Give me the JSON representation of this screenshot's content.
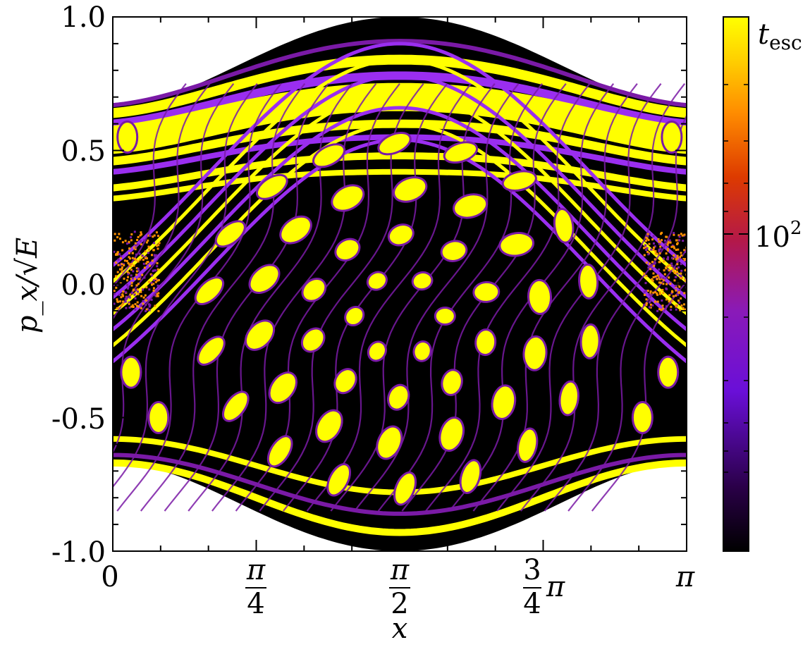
{
  "chart_data": {
    "type": "heatmap",
    "title": "",
    "xlabel": "x",
    "ylabel": "p_x/√E",
    "colorbar_label": "t_esc",
    "colorbar_scale": "log",
    "colorbar_ticks": [
      "10²"
    ],
    "colormap": "gnuplot",
    "xlim": [
      0,
      3.14159
    ],
    "ylim": [
      -1.0,
      1.0
    ],
    "x_ticks": [
      {
        "value": 0,
        "label": "0"
      },
      {
        "value": 0.7854,
        "label": "π/4"
      },
      {
        "value": 1.5708,
        "label": "π/2"
      },
      {
        "value": 2.3562,
        "label": "3/4π"
      },
      {
        "value": 3.1416,
        "label": "π"
      }
    ],
    "y_ticks": [
      {
        "value": 1.0,
        "label": "1.0"
      },
      {
        "value": 0.5,
        "label": "0.5"
      },
      {
        "value": 0.0,
        "label": "0.0"
      },
      {
        "value": -0.5,
        "label": "-0.5"
      },
      {
        "value": -1.0,
        "label": "-1.0"
      }
    ],
    "boundary": "|p_x/√E| ≤ sqrt(1 - 0.55·cos²(x))",
    "colors": {
      "background": "#000000",
      "dark": "#200030",
      "mid": "#7a1aa6",
      "accent": "#9a2ef0",
      "high": "#ff9000",
      "max": "#ffff00"
    }
  }
}
